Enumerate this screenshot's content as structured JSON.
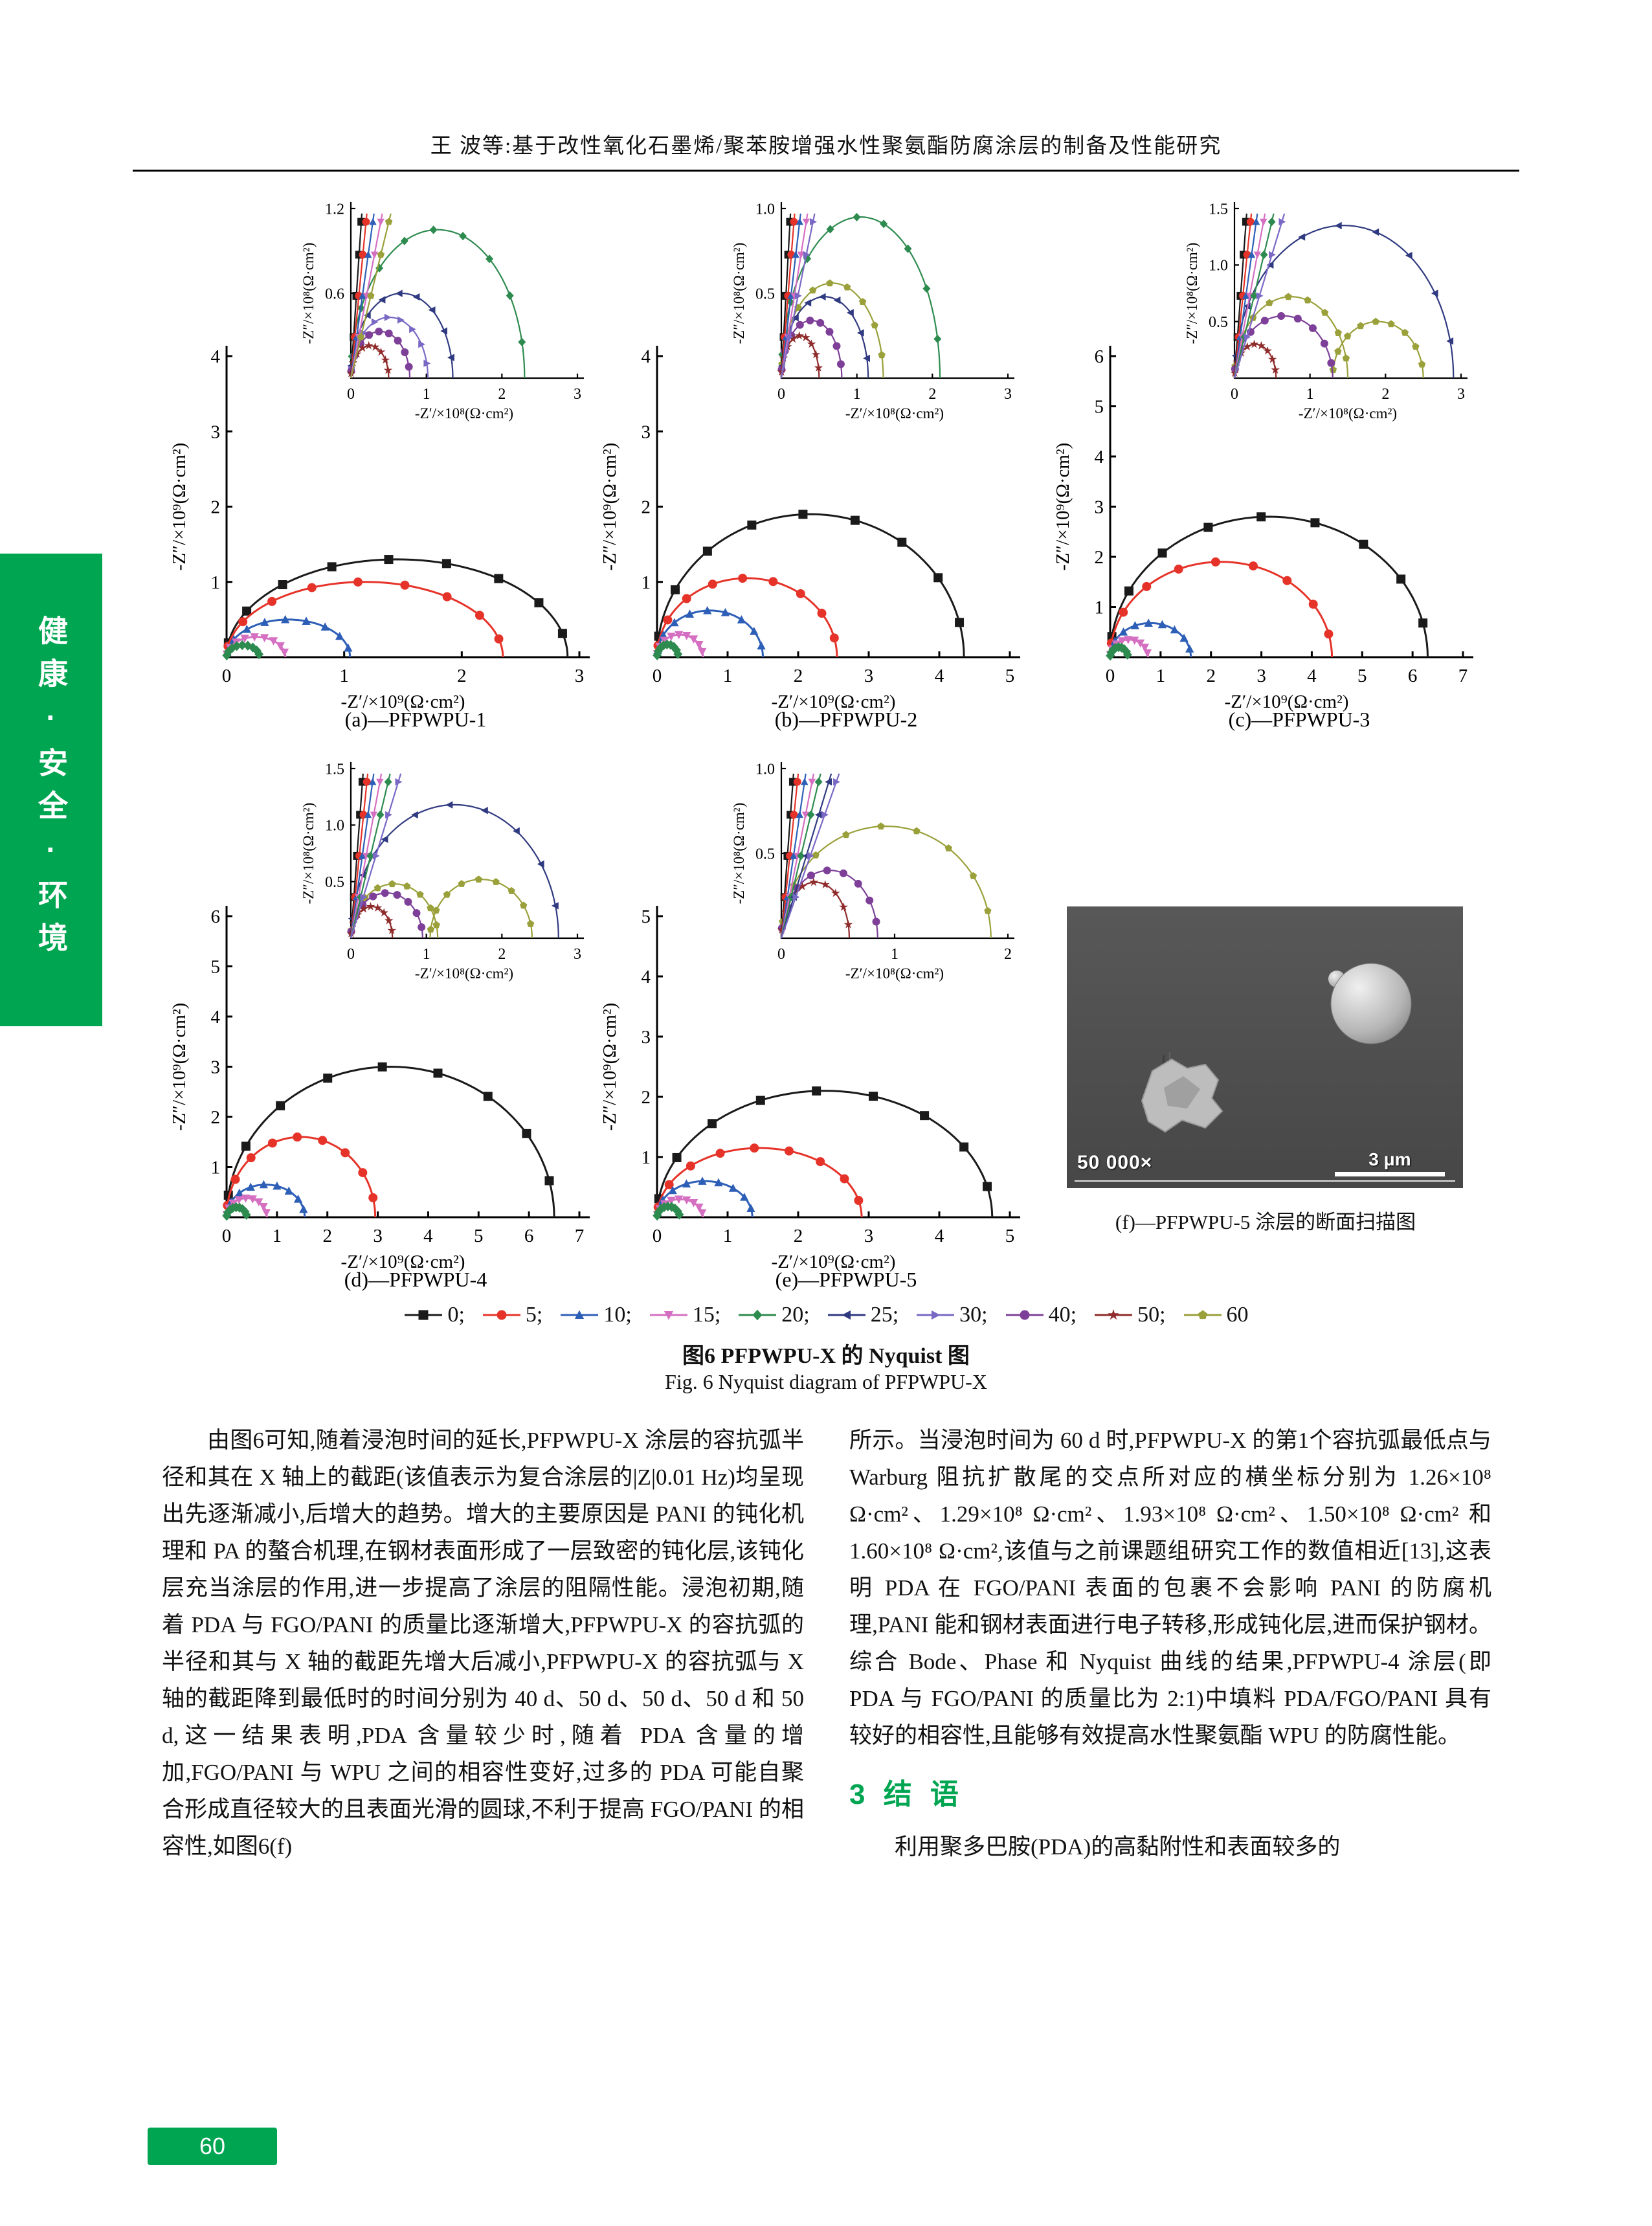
{
  "page": {
    "header_title": "王  波等:基于改性氧化石墨烯/聚苯胺增强水性聚氨酯防腐涂层的制备及性能研究",
    "sidebar_text": "健康·安全·环境",
    "page_number": "60"
  },
  "figure": {
    "caption_zh": "图6  PFPWPU-X 的 Nyquist 图",
    "caption_en": "Fig. 6  Nyquist diagram of PFPWPU-X",
    "sem": {
      "label": "(f)—PFPWPU-5 涂层的断面扫描图",
      "magnification": "50 000×",
      "scale_bar": "3 μm"
    },
    "legend": {
      "items": [
        {
          "key": "0",
          "label": "0;",
          "color": "#1a1a1a",
          "marker": "square"
        },
        {
          "key": "5",
          "label": "5;",
          "color": "#e63329",
          "marker": "circle"
        },
        {
          "key": "10",
          "label": "10;",
          "color": "#2e5fb7",
          "marker": "triangle-up"
        },
        {
          "key": "15",
          "label": "15;",
          "color": "#d56fc2",
          "marker": "triangle-down"
        },
        {
          "key": "20",
          "label": "20;",
          "color": "#2e8b4f",
          "marker": "diamond"
        },
        {
          "key": "25",
          "label": "25;",
          "color": "#303a80",
          "marker": "triangle-left"
        },
        {
          "key": "30",
          "label": "30;",
          "color": "#7a68c5",
          "marker": "triangle-right"
        },
        {
          "key": "40",
          "label": "40;",
          "color": "#7d3f98",
          "marker": "circle"
        },
        {
          "key": "50",
          "label": "50;",
          "color": "#8f2b2b",
          "marker": "star"
        },
        {
          "key": "60",
          "label": "60",
          "color": "#9aa03a",
          "marker": "pentagon"
        }
      ]
    }
  },
  "chart_data": [
    {
      "type": "line",
      "id": "a",
      "label": "(a)—PFPWPU-1",
      "main": {
        "xlabel": "-Z′/×10⁹(Ω·cm²)",
        "ylabel": "-Z″/×10⁹(Ω·cm²)",
        "xlim": [
          0,
          3
        ],
        "ylim": [
          0,
          4
        ],
        "xticks": [
          "0",
          "1",
          "2",
          "3"
        ],
        "yticks": [
          "1",
          "2",
          "3",
          "4"
        ],
        "series": [
          {
            "key": "0",
            "arcs": [
              [
                0,
                2.9,
                1.3
              ]
            ]
          },
          {
            "key": "5",
            "arcs": [
              [
                0,
                2.35,
                1.0
              ]
            ]
          },
          {
            "key": "10",
            "arcs": [
              [
                0,
                1.05,
                0.5
              ]
            ]
          },
          {
            "key": "15",
            "arcs": [
              [
                0,
                0.5,
                0.27
              ]
            ]
          },
          {
            "key": "20",
            "arcs": [
              [
                0,
                0.28,
                0.16
              ]
            ]
          }
        ]
      },
      "inset": {
        "xlabel": "-Z′/×10⁸(Ω·cm²)",
        "ylabel": "-Z″/×10⁸(Ω·cm²)",
        "xlim": [
          0,
          3
        ],
        "ylim": [
          0,
          1.2
        ],
        "xticks": [
          "0",
          "1",
          "2",
          "3"
        ],
        "yticks": [
          "0.6",
          "1.2"
        ],
        "series": [
          {
            "key": "20",
            "arcs": [
              [
                0,
                2.3,
                1.05
              ]
            ]
          },
          {
            "key": "25",
            "arcs": [
              [
                0,
                1.35,
                0.6
              ]
            ]
          },
          {
            "key": "30",
            "arcs": [
              [
                0,
                1.02,
                0.43
              ]
            ]
          },
          {
            "key": "40",
            "arcs": [
              [
                0,
                0.78,
                0.33
              ]
            ]
          },
          {
            "key": "50",
            "arcs": [
              [
                0,
                0.5,
                0.23
              ]
            ]
          },
          {
            "key": "0",
            "line": 8
          },
          {
            "key": "5",
            "line": 5.5
          },
          {
            "key": "10",
            "line": 3.8
          },
          {
            "key": "15",
            "line": 2.8
          },
          {
            "key": "60",
            "line": 2.2
          }
        ]
      }
    },
    {
      "type": "line",
      "id": "b",
      "label": "(b)—PFPWPU-2",
      "main": {
        "xlabel": "-Z′/×10⁹(Ω·cm²)",
        "ylabel": "-Z″/×10⁹(Ω·cm²)",
        "xlim": [
          0,
          5
        ],
        "ylim": [
          0,
          4
        ],
        "xticks": [
          "0",
          "1",
          "2",
          "3",
          "4",
          "5"
        ],
        "yticks": [
          "1",
          "2",
          "3",
          "4"
        ],
        "series": [
          {
            "key": "0",
            "arcs": [
              [
                0,
                4.35,
                1.9
              ]
            ]
          },
          {
            "key": "5",
            "arcs": [
              [
                0,
                2.55,
                1.05
              ]
            ]
          },
          {
            "key": "10",
            "arcs": [
              [
                0,
                1.5,
                0.62
              ]
            ]
          },
          {
            "key": "15",
            "arcs": [
              [
                0,
                0.65,
                0.3
              ]
            ]
          },
          {
            "key": "20",
            "arcs": [
              [
                0,
                0.3,
                0.17
              ]
            ]
          }
        ]
      },
      "inset": {
        "xlabel": "-Z′/×10⁸(Ω·cm²)",
        "ylabel": "-Z″/×10⁸(Ω·cm²)",
        "xlim": [
          0,
          3
        ],
        "ylim": [
          0,
          1.0
        ],
        "xticks": [
          "0",
          "1",
          "2",
          "3"
        ],
        "yticks": [
          "0.5",
          "1.0"
        ],
        "series": [
          {
            "key": "20",
            "arcs": [
              [
                0,
                2.1,
                0.95
              ]
            ]
          },
          {
            "key": "60",
            "arcs": [
              [
                0,
                1.35,
                0.56
              ]
            ]
          },
          {
            "key": "25",
            "arcs": [
              [
                0,
                1.15,
                0.48
              ]
            ]
          },
          {
            "key": "40",
            "arcs": [
              [
                0,
                0.8,
                0.34
              ]
            ]
          },
          {
            "key": "50",
            "arcs": [
              [
                0,
                0.5,
                0.25
              ]
            ]
          },
          {
            "key": "0",
            "line": 8
          },
          {
            "key": "5",
            "line": 5.5
          },
          {
            "key": "10",
            "line": 3.8
          },
          {
            "key": "15",
            "line": 2.8
          },
          {
            "key": "30",
            "line": 2.2
          }
        ]
      }
    },
    {
      "type": "line",
      "id": "c",
      "label": "(c)—PFPWPU-3",
      "main": {
        "xlabel": "-Z′/×10⁹(Ω·cm²)",
        "ylabel": "-Z″/×10⁹(Ω·cm²)",
        "xlim": [
          0,
          7
        ],
        "ylim": [
          0,
          6
        ],
        "xticks": [
          "0",
          "1",
          "2",
          "3",
          "4",
          "5",
          "6",
          "7"
        ],
        "yticks": [
          "1",
          "2",
          "3",
          "4",
          "5",
          "6"
        ],
        "series": [
          {
            "key": "0",
            "arcs": [
              [
                0,
                6.3,
                2.8
              ]
            ]
          },
          {
            "key": "5",
            "arcs": [
              [
                0,
                4.4,
                1.9
              ]
            ]
          },
          {
            "key": "10",
            "arcs": [
              [
                0,
                1.6,
                0.68
              ]
            ]
          },
          {
            "key": "15",
            "arcs": [
              [
                0,
                0.75,
                0.35
              ]
            ]
          },
          {
            "key": "20",
            "arcs": [
              [
                0,
                0.35,
                0.2
              ]
            ]
          }
        ]
      },
      "inset": {
        "xlabel": "-Z′/×10⁸(Ω·cm²)",
        "ylabel": "-Z″/×10⁸(Ω·cm²)",
        "xlim": [
          0,
          3
        ],
        "ylim": [
          0,
          1.5
        ],
        "xticks": [
          "0",
          "1",
          "2",
          "3"
        ],
        "yticks": [
          "0.5",
          "1.0",
          "1.5"
        ],
        "series": [
          {
            "key": "25",
            "arcs": [
              [
                0,
                2.9,
                1.35
              ]
            ]
          },
          {
            "key": "60",
            "arcs": [
              [
                0,
                1.5,
                0.72
              ],
              [
                1.3,
                2.5,
                0.5
              ]
            ]
          },
          {
            "key": "40",
            "arcs": [
              [
                0,
                1.3,
                0.55
              ]
            ]
          },
          {
            "key": "50",
            "arcs": [
              [
                0,
                0.55,
                0.3
              ]
            ]
          },
          {
            "key": "0",
            "line": 9
          },
          {
            "key": "5",
            "line": 6.5
          },
          {
            "key": "10",
            "line": 4.8
          },
          {
            "key": "15",
            "line": 3.6
          },
          {
            "key": "20",
            "line": 2.8
          },
          {
            "key": "30",
            "line": 2.2
          }
        ]
      }
    },
    {
      "type": "line",
      "id": "d",
      "label": "(d)—PFPWPU-4",
      "main": {
        "xlabel": "-Z′/×10⁹(Ω·cm²)",
        "ylabel": "-Z″/×10⁹(Ω·cm²)",
        "xlim": [
          0,
          7
        ],
        "ylim": [
          0,
          6
        ],
        "xticks": [
          "0",
          "1",
          "2",
          "3",
          "4",
          "5",
          "6",
          "7"
        ],
        "yticks": [
          "1",
          "2",
          "3",
          "4",
          "5",
          "6"
        ],
        "series": [
          {
            "key": "0",
            "arcs": [
              [
                0,
                6.5,
                3.0
              ]
            ]
          },
          {
            "key": "5",
            "arcs": [
              [
                0,
                2.95,
                1.6
              ]
            ]
          },
          {
            "key": "10",
            "arcs": [
              [
                0,
                1.55,
                0.65
              ]
            ]
          },
          {
            "key": "15",
            "arcs": [
              [
                0,
                0.8,
                0.38
              ]
            ]
          },
          {
            "key": "20",
            "arcs": [
              [
                0,
                0.4,
                0.2
              ]
            ]
          }
        ]
      },
      "inset": {
        "xlabel": "-Z′/×10⁸(Ω·cm²)",
        "ylabel": "-Z″/×10⁸(Ω·cm²)",
        "xlim": [
          0,
          3
        ],
        "ylim": [
          0,
          1.5
        ],
        "xticks": [
          "0",
          "1",
          "2",
          "3"
        ],
        "yticks": [
          "0.5",
          "1.0",
          "1.5"
        ],
        "series": [
          {
            "key": "25",
            "arcs": [
              [
                0,
                2.75,
                1.18
              ]
            ]
          },
          {
            "key": "60",
            "arcs": [
              [
                0,
                1.15,
                0.48
              ],
              [
                1.05,
                2.4,
                0.52
              ]
            ]
          },
          {
            "key": "40",
            "arcs": [
              [
                0,
                0.95,
                0.4
              ]
            ]
          },
          {
            "key": "50",
            "arcs": [
              [
                0,
                0.55,
                0.28
              ]
            ]
          },
          {
            "key": "0",
            "line": 9
          },
          {
            "key": "5",
            "line": 6.5
          },
          {
            "key": "10",
            "line": 4.8
          },
          {
            "key": "15",
            "line": 3.6
          },
          {
            "key": "20",
            "line": 2.8
          },
          {
            "key": "30",
            "line": 2.2
          }
        ]
      }
    },
    {
      "type": "line",
      "id": "e",
      "label": "(e)—PFPWPU-5",
      "main": {
        "xlabel": "-Z′/×10⁹(Ω·cm²)",
        "ylabel": "-Z″/×10⁹(Ω·cm²)",
        "xlim": [
          0,
          5
        ],
        "ylim": [
          0,
          5
        ],
        "xticks": [
          "0",
          "1",
          "2",
          "3",
          "4",
          "5"
        ],
        "yticks": [
          "1",
          "2",
          "3",
          "4",
          "5"
        ],
        "series": [
          {
            "key": "0",
            "arcs": [
              [
                0,
                4.75,
                2.1
              ]
            ]
          },
          {
            "key": "5",
            "arcs": [
              [
                0,
                2.9,
                1.15
              ]
            ]
          },
          {
            "key": "10",
            "arcs": [
              [
                0,
                1.35,
                0.6
              ]
            ]
          },
          {
            "key": "15",
            "arcs": [
              [
                0,
                0.65,
                0.3
              ]
            ]
          },
          {
            "key": "20",
            "arcs": [
              [
                0,
                0.32,
                0.18
              ]
            ]
          }
        ]
      },
      "inset": {
        "xlabel": "-Z′/×10⁸(Ω·cm²)",
        "ylabel": "-Z″/×10⁸(Ω·cm²)",
        "xlim": [
          0,
          2
        ],
        "ylim": [
          0,
          1.0
        ],
        "xticks": [
          "0",
          "1",
          "2"
        ],
        "yticks": [
          "0.5",
          "1.0"
        ],
        "series": [
          {
            "key": "60",
            "arcs": [
              [
                0,
                1.85,
                0.66
              ]
            ]
          },
          {
            "key": "40",
            "arcs": [
              [
                0,
                0.85,
                0.4
              ]
            ]
          },
          {
            "key": "50",
            "arcs": [
              [
                0,
                0.6,
                0.33
              ]
            ]
          },
          {
            "key": "0",
            "line": 9
          },
          {
            "key": "5",
            "line": 6.5
          },
          {
            "key": "10",
            "line": 4.5
          },
          {
            "key": "15",
            "line": 3.4
          },
          {
            "key": "20",
            "line": 2.8
          },
          {
            "key": "25",
            "line": 2.2
          },
          {
            "key": "30",
            "line": 1.9
          }
        ]
      }
    }
  ],
  "body": {
    "left_paragraph": "由图6可知,随着浸泡时间的延长,PFPWPU-X 涂层的容抗弧半径和其在 X 轴上的截距(该值表示为复合涂层的|Z|0.01 Hz)均呈现出先逐渐减小,后增大的趋势。增大的主要原因是 PANI 的钝化机理和 PA 的螯合机理,在钢材表面形成了一层致密的钝化层,该钝化层充当涂层的作用,进一步提高了涂层的阻隔性能。浸泡初期,随着 PDA 与 FGO/PANI 的质量比逐渐增大,PFPWPU-X 的容抗弧的半径和其与 X 轴的截距先增大后减小,PFPWPU-X 的容抗弧与 X 轴的截距降到最低时的时间分别为 40 d、50 d、50 d、50 d 和 50 d,这一结果表明,PDA 含量较少时,随着 PDA 含量的增加,FGO/PANI 与 WPU 之间的相容性变好,过多的 PDA 可能自聚合形成直径较大的且表面光滑的圆球,不利于提高 FGO/PANI 的相容性,如图6(f)",
    "right_paragraph": "所示。当浸泡时间为 60 d 时,PFPWPU-X 的第1个容抗弧最低点与 Warburg 阻抗扩散尾的交点所对应的横坐标分别为 1.26×10⁸ Ω·cm²、1.29×10⁸ Ω·cm²、1.93×10⁸ Ω·cm²、1.50×10⁸ Ω·cm² 和 1.60×10⁸ Ω·cm²,该值与之前课题组研究工作的数值相近[13],这表明 PDA 在 FGO/PANI 表面的包裹不会影响 PANI 的防腐机理,PANI 能和钢材表面进行电子转移,形成钝化层,进而保护钢材。综合 Bode、Phase 和 Nyquist 曲线的结果,PFPWPU-4 涂层(即 PDA 与 FGO/PANI 的质量比为 2:1)中填料 PDA/FGO/PANI 具有较好的相容性,且能够有效提高水性聚氨酯 WPU 的防腐性能。",
    "section_heading": "3  结  语",
    "closing_paragraph": "利用聚多巴胺(PDA)的高黏附性和表面较多的"
  },
  "colors": {
    "accent_green": "#00A551"
  }
}
